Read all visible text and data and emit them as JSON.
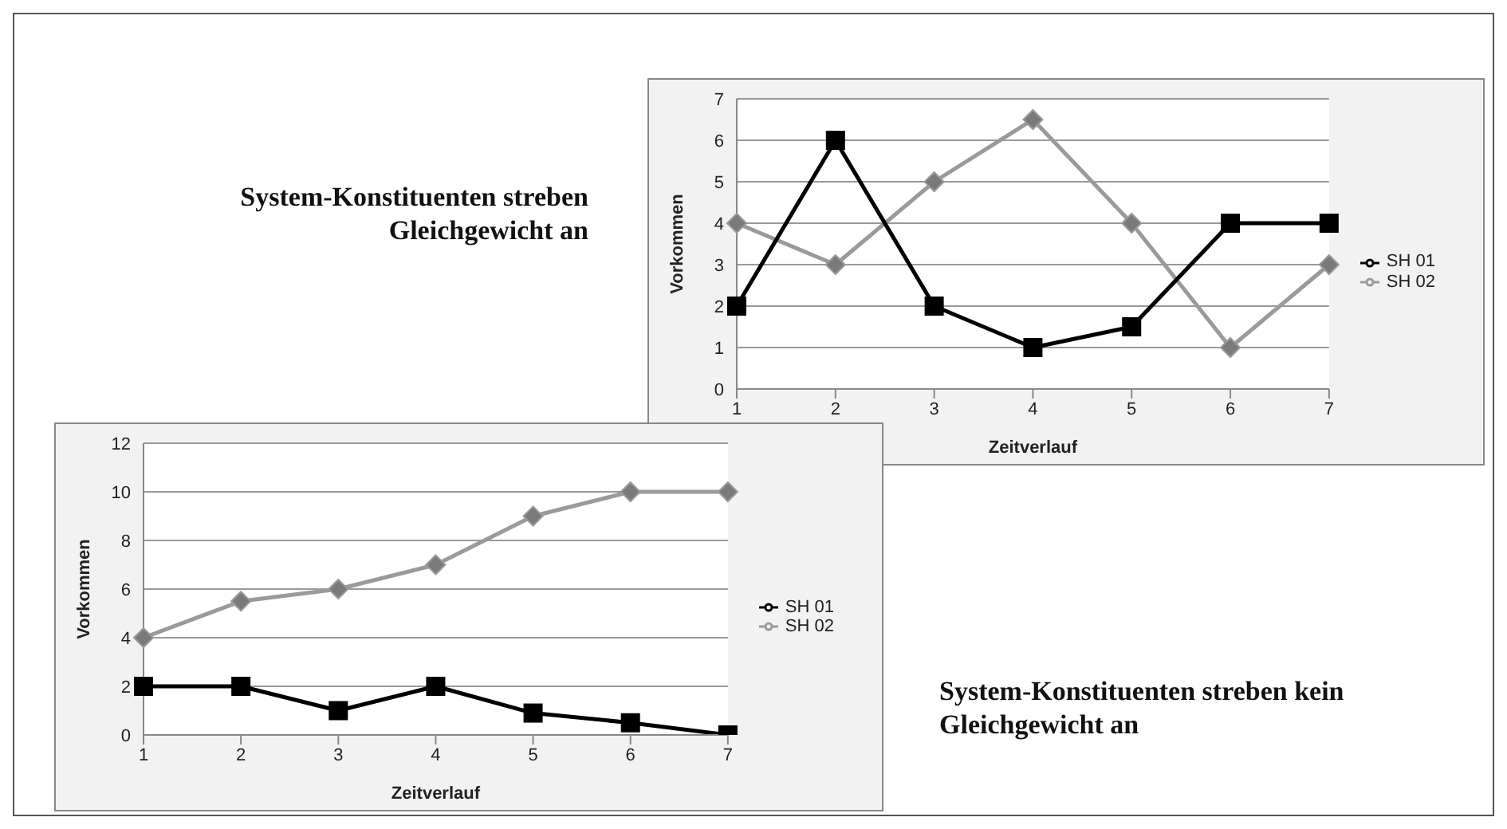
{
  "chart_data": [
    {
      "type": "line",
      "annotations": [
        "System-Konstituenten streben Gleichgewicht an"
      ],
      "xlabel": "Zeitverlauf",
      "ylabel": "Vorkommen",
      "categories": [
        "1",
        "2",
        "3",
        "4",
        "5",
        "6",
        "7"
      ],
      "series": [
        {
          "name": "SH 02",
          "color": "#9a9a9a",
          "marker": "diamond",
          "values": [
            4,
            3,
            5,
            6.5,
            4,
            1,
            3
          ]
        },
        {
          "name": "SH 01",
          "color": "#000000",
          "marker": "square",
          "values": [
            2,
            6,
            2,
            1,
            1.5,
            4,
            4
          ]
        }
      ],
      "ylim": [
        0,
        7
      ],
      "yticks": [
        0,
        1,
        2,
        3,
        4,
        5,
        6,
        7
      ],
      "grid": "y",
      "legend": "right"
    },
    {
      "type": "line",
      "annotations": [
        "System-Konstituenten streben kein Gleichgewicht an"
      ],
      "xlabel": "Zeitverlauf",
      "ylabel": "Vorkommen",
      "categories": [
        "1",
        "2",
        "3",
        "4",
        "5",
        "6",
        "7"
      ],
      "series": [
        {
          "name": "SH 02",
          "color": "#9a9a9a",
          "marker": "diamond",
          "values": [
            4,
            5.5,
            6,
            7,
            9,
            10,
            10
          ]
        },
        {
          "name": "SH 01",
          "color": "#000000",
          "marker": "square",
          "values": [
            2,
            2,
            1,
            2,
            0.9,
            0.5,
            0
          ]
        }
      ],
      "ylim": [
        0,
        12
      ],
      "yticks": [
        0,
        2,
        4,
        6,
        8,
        10,
        12
      ],
      "grid": "y",
      "legend": "right"
    }
  ]
}
